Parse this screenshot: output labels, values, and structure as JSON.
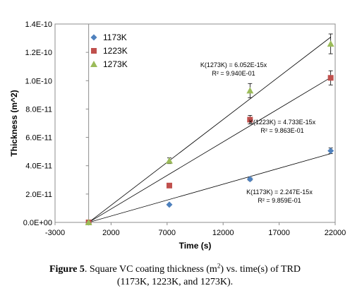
{
  "caption": {
    "label": "Figure 5",
    "text_before_sup": ". Square VC coating thickness (m",
    "sup": "2",
    "text_after_sup": ") vs. time(s) of TRD",
    "line2": "(1173K, 1223K, and 1273K)."
  },
  "chart_data": {
    "type": "scatter",
    "title": "",
    "xlabel": "Time (s)",
    "ylabel": "Thickness (m^2)",
    "xlim": [
      -3000,
      22000
    ],
    "ylim": [
      0,
      1.4e-10
    ],
    "x_ticks": [
      -3000,
      2000,
      7000,
      12000,
      17000,
      22000
    ],
    "x_tick_labels": [
      "-3000",
      "2000",
      "7000",
      "12000",
      "17000",
      "22000"
    ],
    "y_ticks": [
      0,
      2e-11,
      4e-11,
      6e-11,
      8e-11,
      1e-10,
      1.2e-10,
      1.4e-10
    ],
    "y_tick_labels": [
      "0.0E+00",
      "2.0E-11",
      "4.0E-11",
      "6.0E-11",
      "8.0E-11",
      "1.0E-10",
      "1.2E-10",
      "1.4E-10"
    ],
    "grid": false,
    "legend_position": "top-left",
    "series": [
      {
        "name": "1173K",
        "color": "#4F81BD",
        "marker": "diamond",
        "x": [
          0,
          7200,
          14400,
          21600
        ],
        "y": [
          0,
          1.25e-11,
          3.05e-11,
          5.05e-11
        ],
        "error": [
          0,
          0,
          1e-12,
          2e-12
        ],
        "fit_slope": 2.247e-15,
        "annotation": [
          "K(1173K) = 2.247E-15x",
          "R² = 9.859E-01"
        ]
      },
      {
        "name": "1223K",
        "color": "#C0504D",
        "marker": "square",
        "x": [
          0,
          7200,
          14400,
          21600
        ],
        "y": [
          0,
          2.6e-11,
          7.25e-11,
          1.02e-10
        ],
        "error": [
          0,
          0,
          3e-12,
          5e-12
        ],
        "fit_slope": 4.733e-15,
        "annotation": [
          "K(1223K) = 4.733E-15x",
          "R² = 9.863E-01"
        ]
      },
      {
        "name": "1273K",
        "color": "#9BBB59",
        "marker": "triangle",
        "x": [
          0,
          7200,
          14400,
          21600
        ],
        "y": [
          0,
          4.35e-11,
          9.3e-11,
          1.26e-10
        ],
        "error": [
          0,
          2e-12,
          5e-12,
          7e-12
        ],
        "fit_slope": 6.052e-15,
        "annotation": [
          "K(1273K) = 6.052E-15x",
          "R² = 9.940E-01"
        ]
      }
    ]
  }
}
